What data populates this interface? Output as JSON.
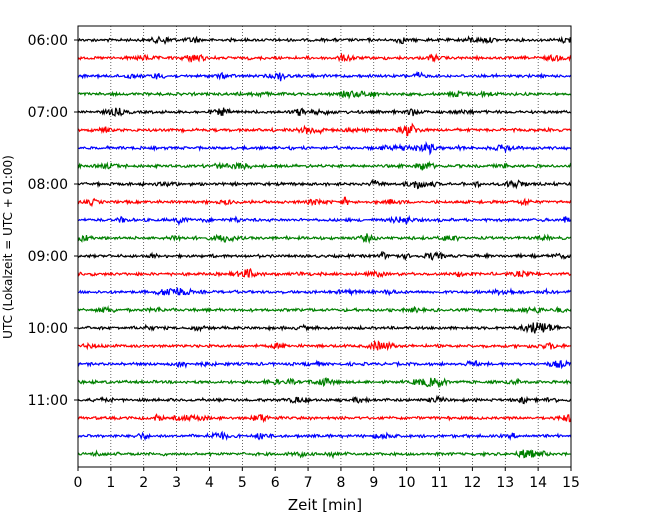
{
  "chart_data": {
    "type": "line",
    "subtype": "helicorder",
    "title": "",
    "xlabel": "Zeit  [min]",
    "ylabel": "UTC (Lokalzeit = UTC + 01:00)",
    "xlim": [
      0,
      15
    ],
    "x_ticks": [
      "0",
      "1",
      "2",
      "3",
      "4",
      "5",
      "6",
      "7",
      "8",
      "9",
      "10",
      "11",
      "12",
      "13",
      "14",
      "15"
    ],
    "y_tick_labels": [
      "06:00",
      "07:00",
      "08:00",
      "09:00",
      "10:00",
      "11:00"
    ],
    "minutes_per_line": 15,
    "lines_per_hour": 4,
    "grid": "vertical dotted at each minute",
    "colors": [
      "#000000",
      "#ff0000",
      "#0000ff",
      "#008000"
    ],
    "traces": [
      {
        "start": "06:00",
        "color": "#000000"
      },
      {
        "start": "06:15",
        "color": "#ff0000"
      },
      {
        "start": "06:30",
        "color": "#0000ff"
      },
      {
        "start": "06:45",
        "color": "#008000"
      },
      {
        "start": "07:00",
        "color": "#000000"
      },
      {
        "start": "07:15",
        "color": "#ff0000"
      },
      {
        "start": "07:30",
        "color": "#0000ff"
      },
      {
        "start": "07:45",
        "color": "#008000"
      },
      {
        "start": "08:00",
        "color": "#000000"
      },
      {
        "start": "08:15",
        "color": "#ff0000"
      },
      {
        "start": "08:30",
        "color": "#0000ff"
      },
      {
        "start": "08:45",
        "color": "#008000"
      },
      {
        "start": "09:00",
        "color": "#000000"
      },
      {
        "start": "09:15",
        "color": "#ff0000"
      },
      {
        "start": "09:30",
        "color": "#0000ff"
      },
      {
        "start": "09:45",
        "color": "#008000"
      },
      {
        "start": "10:00",
        "color": "#000000"
      },
      {
        "start": "10:15",
        "color": "#ff0000"
      },
      {
        "start": "10:30",
        "color": "#0000ff"
      },
      {
        "start": "10:45",
        "color": "#008000"
      },
      {
        "start": "11:00",
        "color": "#000000"
      },
      {
        "start": "11:15",
        "color": "#ff0000"
      },
      {
        "start": "11:30",
        "color": "#0000ff"
      },
      {
        "start": "11:45",
        "color": "#008000"
      }
    ]
  }
}
